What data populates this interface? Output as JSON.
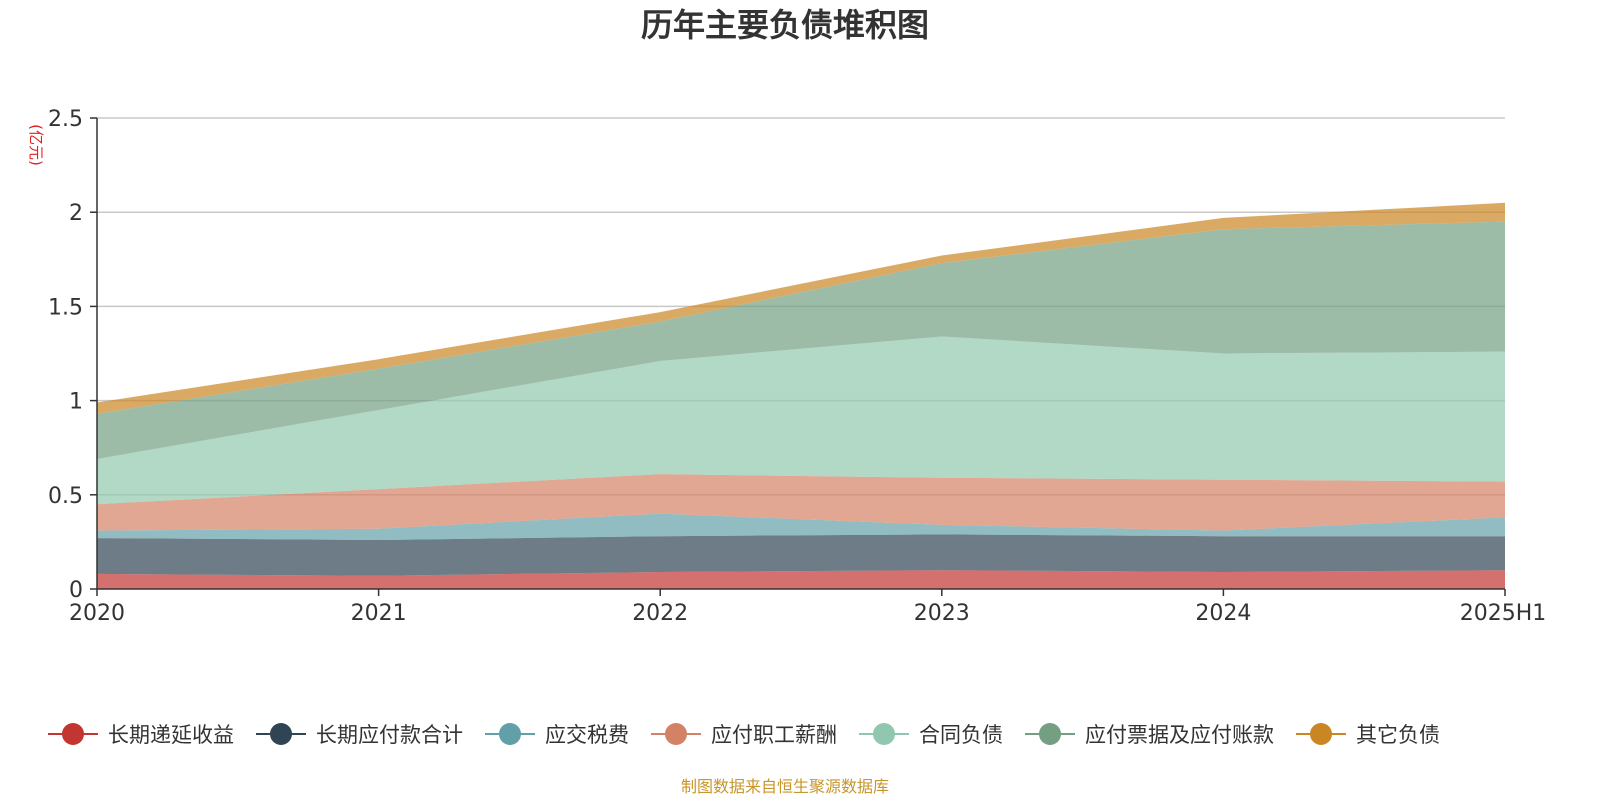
{
  "chart_data": {
    "type": "area",
    "stacked": true,
    "title": "历年主要负债堆积图",
    "y_unit_label": "(亿元)",
    "categories": [
      "2020",
      "2021",
      "2022",
      "2023",
      "2024",
      "2025H1"
    ],
    "y_ticks": [
      "0",
      "0.5",
      "1",
      "1.5",
      "2",
      "2.5"
    ],
    "ylim": [
      0,
      2.5
    ],
    "grid": true,
    "legend_position": "bottom",
    "source_note": "制图数据来自恒生聚源数据库",
    "series": [
      {
        "name": "长期递延收益",
        "color": "#c23531",
        "values": [
          0.08,
          0.07,
          0.09,
          0.1,
          0.09,
          0.1
        ]
      },
      {
        "name": "长期应付款合计",
        "color": "#2f4554",
        "values": [
          0.19,
          0.19,
          0.19,
          0.19,
          0.19,
          0.18
        ]
      },
      {
        "name": "应交税费",
        "color": "#61a0a8",
        "values": [
          0.04,
          0.06,
          0.12,
          0.05,
          0.03,
          0.1
        ]
      },
      {
        "name": "应付职工薪酬",
        "color": "#d48265",
        "values": [
          0.14,
          0.21,
          0.21,
          0.25,
          0.27,
          0.19
        ]
      },
      {
        "name": "合同负债",
        "color": "#91c7ae",
        "values": [
          0.24,
          0.42,
          0.6,
          0.75,
          0.67,
          0.69
        ]
      },
      {
        "name": "应付票据及应付账款",
        "color": "#749f83",
        "values": [
          0.24,
          0.22,
          0.21,
          0.39,
          0.66,
          0.69
        ]
      },
      {
        "name": "其它负债",
        "color": "#ca8622",
        "values": [
          0.06,
          0.05,
          0.05,
          0.04,
          0.06,
          0.1
        ]
      }
    ]
  }
}
